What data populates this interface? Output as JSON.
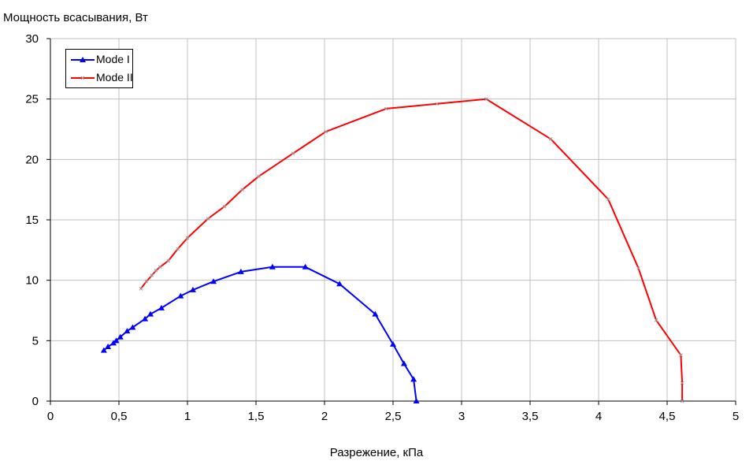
{
  "chart_data": {
    "type": "line",
    "xlabel": "Разрежение, кПа",
    "ylabel": "Мощность всасывания, Вт",
    "xlim": [
      0,
      5
    ],
    "ylim": [
      0,
      30
    ],
    "x_ticks": [
      "0",
      "0,5",
      "1",
      "1,5",
      "2",
      "2,5",
      "3",
      "3,5",
      "4",
      "4,5",
      "5"
    ],
    "y_ticks": [
      "0",
      "5",
      "10",
      "15",
      "20",
      "25",
      "30"
    ],
    "grid": true,
    "legend_position": "top-left",
    "series": [
      {
        "name": "Mode I",
        "color": "#0000ff",
        "marker": "triangle",
        "x": [
          0.39,
          0.42,
          0.46,
          0.48,
          0.51,
          0.56,
          0.6,
          0.69,
          0.73,
          0.81,
          0.95,
          1.04,
          1.19,
          1.39,
          1.62,
          1.86,
          2.11,
          2.37,
          2.5,
          2.58,
          2.65,
          2.67
        ],
        "y": [
          4.2,
          4.5,
          4.8,
          5.0,
          5.3,
          5.8,
          6.1,
          6.8,
          7.2,
          7.7,
          8.7,
          9.2,
          9.9,
          10.7,
          11.1,
          11.1,
          9.7,
          7.2,
          4.7,
          3.1,
          1.8,
          0.0
        ]
      },
      {
        "name": "Mode II",
        "color": "#ff0000",
        "marker": "x",
        "x": [
          0.66,
          0.7,
          0.74,
          0.77,
          0.8,
          0.86,
          0.93,
          1.0,
          1.15,
          1.27,
          1.4,
          1.52,
          1.77,
          2.01,
          2.45,
          2.82,
          3.18,
          3.65,
          4.07,
          4.29,
          4.42,
          4.6,
          4.61,
          4.61
        ],
        "y": [
          9.3,
          9.9,
          10.4,
          10.8,
          11.1,
          11.6,
          12.6,
          13.5,
          15.1,
          16.1,
          17.5,
          18.6,
          20.5,
          22.3,
          24.2,
          24.6,
          25.0,
          21.7,
          16.7,
          11.0,
          6.7,
          3.8,
          1.5,
          0.0
        ]
      }
    ]
  }
}
